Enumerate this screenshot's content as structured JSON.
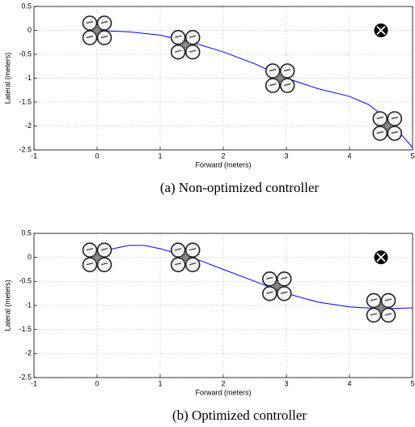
{
  "chart_data": [
    {
      "type": "line",
      "caption": "(a) Non-optimized controller",
      "xlabel": "Forward (meters)",
      "ylabel": "Lateral (meters)",
      "x": [
        0,
        0.5,
        1,
        1.5,
        2,
        2.5,
        3,
        3.5,
        4,
        4.3,
        4.5,
        4.7,
        5
      ],
      "values": [
        0,
        -0.03,
        -0.1,
        -0.25,
        -0.45,
        -0.7,
        -1.0,
        -1.22,
        -1.38,
        -1.55,
        -1.75,
        -2.0,
        -2.45
      ],
      "color": "#0000ff",
      "markers": {
        "x": [
          0,
          1.4,
          2.9,
          4.6
        ],
        "y": [
          0,
          -0.3,
          -1.0,
          -2.0
        ]
      },
      "target": {
        "x": 4.5,
        "y": 0
      },
      "xlim": [
        -1,
        5
      ],
      "ylim": [
        -2.5,
        0.5
      ],
      "xticks": [
        -1,
        0,
        1,
        2,
        3,
        4,
        5
      ],
      "yticks": [
        0.5,
        0,
        -0.5,
        -1,
        -1.5,
        -2,
        -2.5
      ],
      "grid": true
    },
    {
      "type": "line",
      "caption": "(b) Optimized controller",
      "xlabel": "Forward (meters)",
      "ylabel": "Lateral (meters)",
      "x": [
        0,
        0.25,
        0.5,
        0.75,
        1,
        1.5,
        2,
        2.5,
        3,
        3.5,
        4,
        4.5,
        5
      ],
      "values": [
        0,
        0.18,
        0.25,
        0.25,
        0.18,
        0.0,
        -0.25,
        -0.5,
        -0.75,
        -0.93,
        -1.03,
        -1.07,
        -1.05
      ],
      "color": "#0000ff",
      "markers": {
        "x": [
          0,
          1.4,
          2.85,
          4.5
        ],
        "y": [
          0,
          0,
          -0.6,
          -1.05
        ]
      },
      "target": {
        "x": 4.5,
        "y": 0
      },
      "xlim": [
        -1,
        5
      ],
      "ylim": [
        -2.5,
        0.5
      ],
      "xticks": [
        -1,
        0,
        1,
        2,
        3,
        4,
        5
      ],
      "yticks": [
        0.5,
        0,
        -0.5,
        -1,
        -1.5,
        -2,
        -2.5
      ],
      "grid": true
    }
  ]
}
